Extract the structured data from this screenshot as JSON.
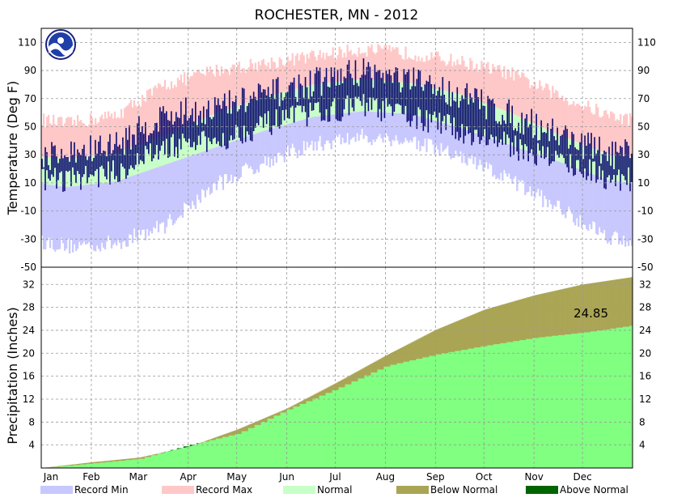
{
  "chart_data": {
    "type": "area",
    "title": "ROCHESTER, MN - 2012",
    "months": [
      "Jan",
      "Feb",
      "Mar",
      "Apr",
      "May",
      "Jun",
      "Jul",
      "Aug",
      "Sep",
      "Oct",
      "Nov",
      "Dec"
    ],
    "temperature_panel": {
      "ylabel": "Temperature (Deg F)",
      "ylim": [
        -50,
        120
      ],
      "ticks": [
        -50,
        -30,
        -10,
        10,
        30,
        50,
        70,
        90,
        110
      ],
      "normal_high_by_month": [
        27,
        31,
        44,
        59,
        71,
        80,
        84,
        81,
        73,
        60,
        44,
        30
      ],
      "normal_low_by_month": [
        7,
        11,
        23,
        35,
        47,
        57,
        61,
        59,
        49,
        37,
        25,
        12
      ],
      "record_max_by_month": [
        52,
        58,
        80,
        90,
        95,
        100,
        105,
        102,
        96,
        88,
        72,
        58
      ],
      "record_min_by_month": [
        -35,
        -33,
        -20,
        8,
        25,
        37,
        43,
        40,
        28,
        12,
        -8,
        -28
      ],
      "actual_high_by_month": [
        30,
        37,
        58,
        63,
        72,
        81,
        90,
        82,
        73,
        58,
        45,
        30
      ],
      "actual_low_by_month": [
        13,
        18,
        36,
        40,
        52,
        60,
        66,
        58,
        48,
        37,
        27,
        14
      ]
    },
    "precipitation_panel": {
      "ylabel": "Precipitation (Inches)",
      "ylim": [
        0,
        35
      ],
      "ticks": [
        4,
        8,
        12,
        16,
        20,
        24,
        28,
        32
      ],
      "normal_cumulative_by_month_end": [
        1.0,
        1.8,
        3.7,
        6.7,
        10.4,
        14.8,
        19.6,
        24.1,
        27.6,
        30.1,
        32.0,
        33.3
      ],
      "actual_cumulative_by_month_end": [
        0.8,
        1.6,
        4.0,
        6.0,
        10.2,
        13.8,
        17.8,
        19.8,
        21.3,
        22.7,
        23.6,
        24.85
      ],
      "total_label": "24.85"
    },
    "legend": [
      {
        "label": "Record Min",
        "color": "#c8c8ff"
      },
      {
        "label": "Record Max",
        "color": "#ffc8c8"
      },
      {
        "label": "Normal",
        "color": "#c8ffc8"
      },
      {
        "label": "Below Normal",
        "color": "#aaa554"
      },
      {
        "label": "Above Normal",
        "color": "#006400"
      }
    ],
    "colors": {
      "actual_temp": "#0a0a6e",
      "actual_precip": "#80ff80",
      "grid": "#999999"
    },
    "logo": "noaa-logo",
    "grid": true
  }
}
